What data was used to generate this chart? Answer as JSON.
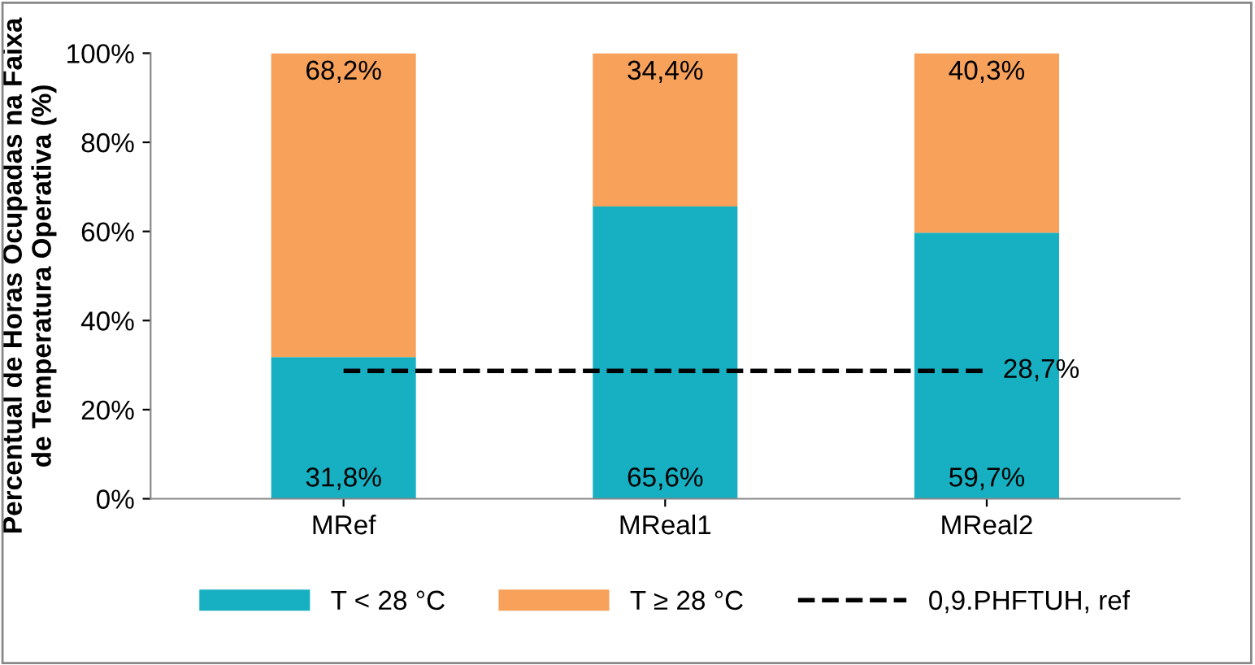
{
  "chart_data": {
    "type": "bar",
    "stacked": true,
    "ylabel": "Percentual de Horas Ocupadas na Faixa de Temperatura Operativa (%)",
    "categories": [
      "MRef",
      "MReal1",
      "MReal2"
    ],
    "series": [
      {
        "name": "T < 28 °C",
        "color": "#17b0c2",
        "values": [
          31.8,
          65.6,
          59.7
        ],
        "value_labels": [
          "31,8%",
          "65,6%",
          "59,7%"
        ]
      },
      {
        "name": "T ≥ 28 °C",
        "color": "#f7a15a",
        "values": [
          68.2,
          34.4,
          40.3
        ],
        "value_labels": [
          "68,2%",
          "34,4%",
          "40,3%"
        ]
      },
      {
        "name": "0,9.PHFTUH, ref",
        "type": "line",
        "color": "#000000",
        "line_style": "dashed",
        "marker": "none",
        "values": [
          28.7,
          28.7,
          28.7
        ],
        "value_labels": [
          null,
          null,
          "28,7%"
        ]
      }
    ],
    "ylim": [
      0,
      100
    ],
    "yticks": [
      {
        "value": 0,
        "label": "0%"
      },
      {
        "value": 20,
        "label": "20%"
      },
      {
        "value": 40,
        "label": "40%"
      },
      {
        "value": 60,
        "label": "60%"
      },
      {
        "value": 80,
        "label": "80%"
      },
      {
        "value": 100,
        "label": "100%"
      }
    ],
    "grid": false,
    "legend": "bottom"
  }
}
